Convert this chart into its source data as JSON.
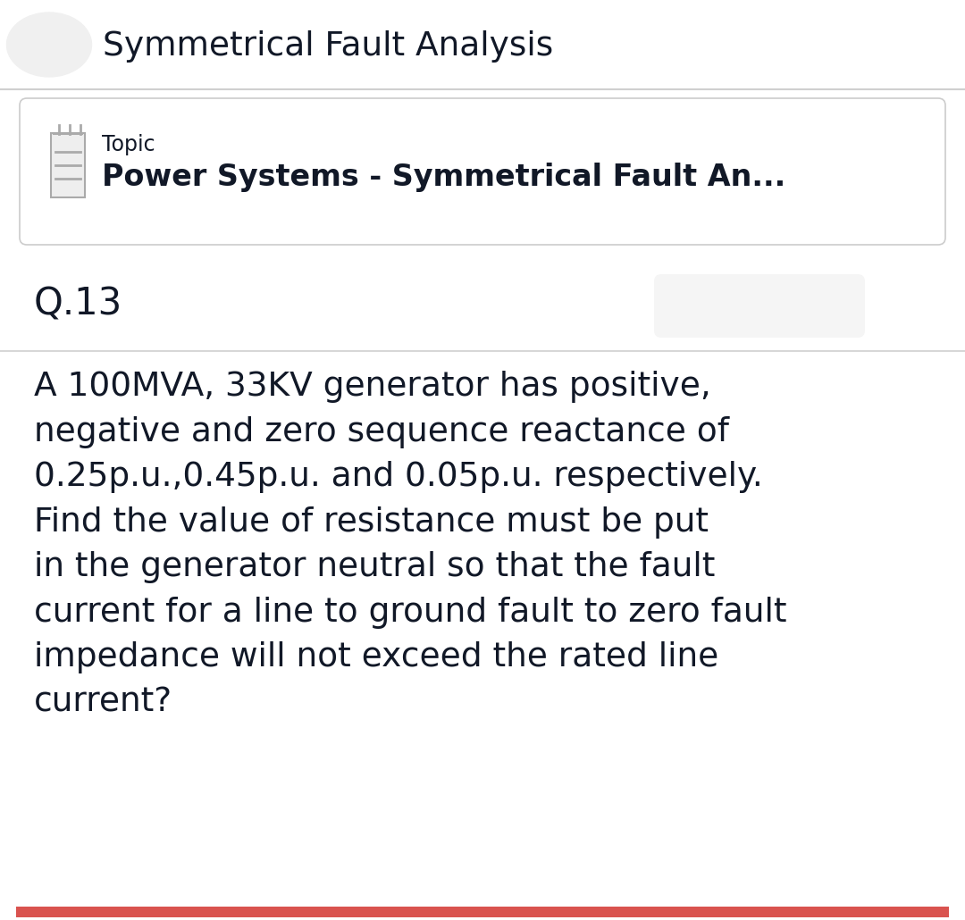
{
  "title": "Symmetrical Fault Analysis",
  "topic_label": "Topic",
  "topic_value": "Power Systems - Symmetrical Fault An...",
  "question_number": "Q.13",
  "question_text": "A 100MVA, 33KV generator has positive,\nnegative and zero sequence reactance of\n0.25p.u.,0.45p.u. and 0.05p.u. respectively.\nFind the value of resistance must be put\nin the generator neutral so that the fault\ncurrent for a line to ground fault to zero fault\nimpedance will not exceed the rated line\ncurrent?",
  "bg_color": "#ffffff",
  "header_bg": "#ffffff",
  "card_bg": "#ffffff",
  "text_color": "#111827",
  "topic_card_bg": "#ffffff",
  "bottom_bar_color": "#d9534f",
  "header_circle_color": "#f0f0f0",
  "separator_color": "#d0d0d0",
  "card_border_color": "#cccccc",
  "icon_color": "#aaaaaa",
  "q_badge_color": "#f0f0f0"
}
